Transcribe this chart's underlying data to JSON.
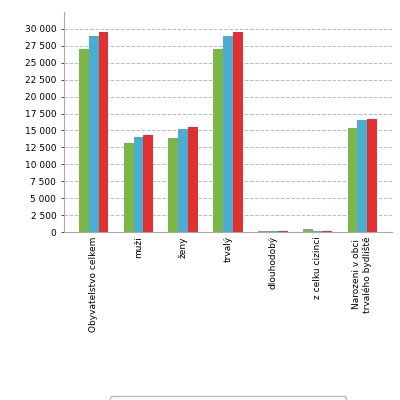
{
  "categories": [
    "Obyvatelstvo celkem",
    "muži",
    "ženy",
    "trvalý",
    "dlouhodobý",
    "z celku cizinci",
    "Narozeni v obci\ntrvalého bydliště"
  ],
  "series": {
    "26.3.2011": [
      27000,
      13100,
      13900,
      27000,
      200,
      500,
      15300
    ],
    "1.3.2001": [
      29000,
      14000,
      15200,
      28900,
      200,
      100,
      16500
    ],
    "3.3.1991": [
      29500,
      14400,
      15500,
      29500,
      200,
      100,
      16700
    ]
  },
  "colors": {
    "26.3.2011": "#7ab648",
    "1.3.2001": "#4bacd4",
    "3.3.1991": "#e03030"
  },
  "ylim": [
    0,
    32500
  ],
  "yticks": [
    0,
    2500,
    5000,
    7500,
    10000,
    12500,
    15000,
    17500,
    20000,
    22500,
    25000,
    27500,
    30000
  ],
  "ytick_labels": [
    "0",
    "2 500",
    "5 000",
    "7 500",
    "10 000",
    "12 500",
    "15 000",
    "17 500",
    "20 000",
    "22 500",
    "25 000",
    "27 500",
    "30 000"
  ],
  "background_color": "#ffffff",
  "grid_color": "#bbbbbb",
  "bar_width": 0.22,
  "legend_fontsize": 7.5,
  "tick_fontsize": 6.5,
  "xtick_fontsize": 6.5
}
